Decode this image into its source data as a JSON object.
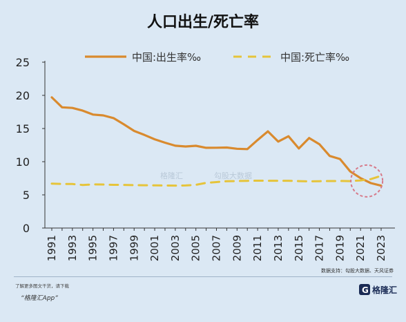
{
  "title": "人口出生/死亡率",
  "legend": {
    "birth": "中国:出生率‰",
    "death": "中国:死亡率‰"
  },
  "colors": {
    "birth": "#d98a2e",
    "death": "#e6c43a",
    "axis": "#333333",
    "circle": "#d77a8a",
    "bg": "#dbe8f4"
  },
  "source": "数据支持：勾股大数据、天风证券",
  "footer": {
    "note": "了解更多图文干货，请下载",
    "app": "“格隆汇App”",
    "logo": "格隆汇"
  },
  "watermark": {
    "left": "格隆汇",
    "right": "勾股大数据"
  },
  "chart_data": {
    "type": "line",
    "title": "人口出生/死亡率",
    "categories": [
      "1991",
      "1993",
      "1995",
      "1997",
      "1999",
      "2001",
      "2003",
      "2005",
      "2007",
      "2009",
      "2011",
      "2013",
      "2015",
      "2017",
      "2019",
      "2021",
      "2023"
    ],
    "x": [
      1991,
      1992,
      1993,
      1994,
      1995,
      1996,
      1997,
      1998,
      1999,
      2000,
      2001,
      2002,
      2003,
      2004,
      2005,
      2006,
      2007,
      2008,
      2009,
      2010,
      2011,
      2012,
      2013,
      2014,
      2015,
      2016,
      2017,
      2018,
      2019,
      2020,
      2021,
      2022,
      2023
    ],
    "series": [
      {
        "name": "中国:出生率‰",
        "values": [
          19.7,
          18.2,
          18.1,
          17.7,
          17.1,
          16.98,
          16.57,
          15.64,
          14.64,
          14.03,
          13.38,
          12.86,
          12.41,
          12.29,
          12.4,
          12.09,
          12.1,
          12.14,
          11.95,
          11.9,
          13.27,
          14.57,
          13.03,
          13.83,
          11.99,
          13.57,
          12.64,
          10.86,
          10.41,
          8.52,
          7.52,
          6.77,
          6.39
        ]
      },
      {
        "name": "中国:死亡率‰",
        "values": [
          6.7,
          6.64,
          6.64,
          6.49,
          6.57,
          6.56,
          6.51,
          6.5,
          6.46,
          6.45,
          6.43,
          6.41,
          6.4,
          6.42,
          6.51,
          6.81,
          6.93,
          7.06,
          7.08,
          7.11,
          7.14,
          7.13,
          7.13,
          7.12,
          7.07,
          7.04,
          7.06,
          7.08,
          7.09,
          7.07,
          7.18,
          7.37,
          7.87
        ]
      }
    ],
    "ylim": [
      0,
      25
    ],
    "yticks": [
      0,
      5,
      10,
      15,
      20,
      25
    ],
    "xlim": [
      1991,
      2023
    ],
    "grid": false,
    "legend_position": "top",
    "highlight": "circle around 2021–2023 crossover"
  }
}
